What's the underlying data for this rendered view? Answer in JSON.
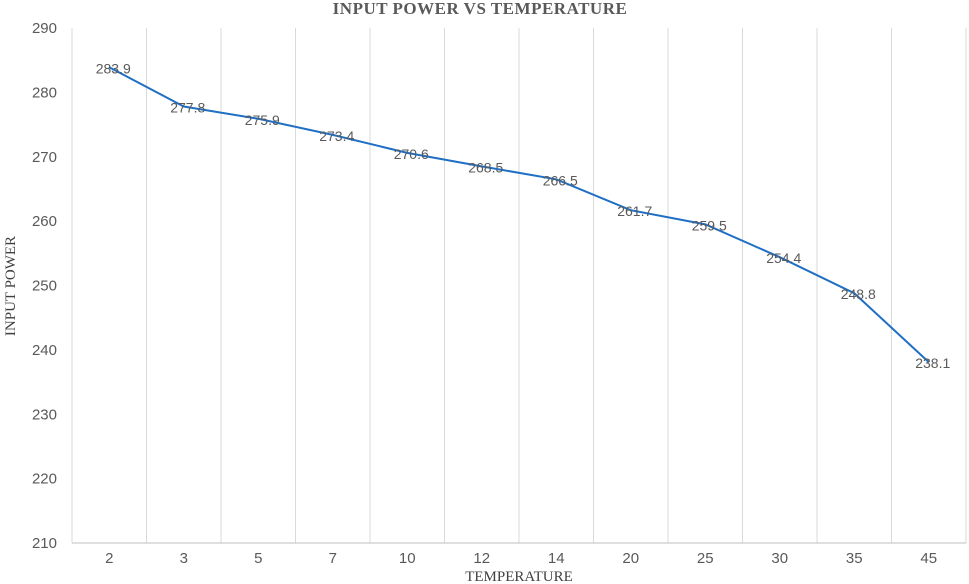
{
  "chart_data": {
    "type": "line",
    "title": "INPUT POWER VS TEMPERATURE",
    "xlabel": "TEMPERATURE",
    "ylabel": "INPUT POWER",
    "categories": [
      "2",
      "3",
      "5",
      "7",
      "10",
      "12",
      "14",
      "20",
      "25",
      "30",
      "35",
      "45"
    ],
    "series": [
      {
        "values": [
          283.9,
          277.8,
          275.9,
          273.4,
          270.6,
          268.5,
          266.5,
          261.7,
          259.5,
          254.4,
          248.8,
          238.1
        ],
        "labels": [
          "283.9",
          "277.8",
          "275.9",
          "273.4",
          "270.6",
          "268.5",
          "266.5",
          "261.7",
          "259.5",
          "254.4",
          "248.8",
          "238.1"
        ]
      }
    ],
    "ylim": [
      210,
      290
    ],
    "yticks": [
      210,
      220,
      230,
      240,
      250,
      260,
      270,
      280,
      290
    ],
    "grid": "vertical",
    "legend": "none",
    "colors": {
      "series": "#1f6fc5",
      "grid": "#d9d9d9",
      "text": "#595959"
    }
  }
}
